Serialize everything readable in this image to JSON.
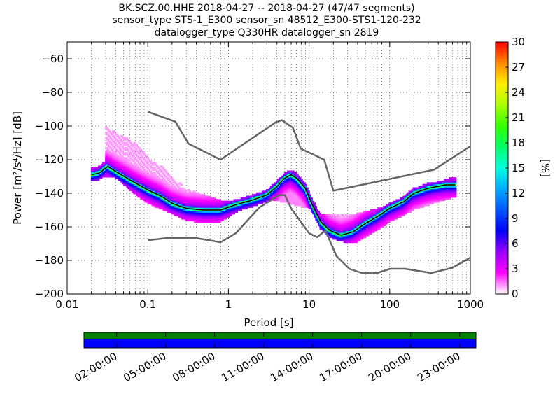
{
  "title": {
    "line1": "BK.SCZ.00.HHE   2018-04-27 -- 2018-04-27  (47/47 segments)",
    "line2": "sensor_type STS-1_E300 sensor_sn 48512_E300-STS1-120-232",
    "line3": "datalogger_type Q330HR datalogger_sn 2819"
  },
  "chart_data": {
    "type": "heatmap",
    "xlabel": "Period [s]",
    "ylabel": "Power [m²/s⁴/Hz] [dB]",
    "xscale": "log",
    "xlim": [
      0.01,
      1000
    ],
    "ylim": [
      -200,
      -50
    ],
    "x_ticks": [
      {
        "v": 0.01,
        "label": "0.01"
      },
      {
        "v": 0.1,
        "label": "0.1"
      },
      {
        "v": 1,
        "label": "1"
      },
      {
        "v": 10,
        "label": "10"
      },
      {
        "v": 100,
        "label": "100"
      },
      {
        "v": 1000,
        "label": "1000"
      }
    ],
    "y_ticks": [
      {
        "v": -60,
        "label": "−60"
      },
      {
        "v": -80,
        "label": "−80"
      },
      {
        "v": -100,
        "label": "−100"
      },
      {
        "v": -120,
        "label": "−120"
      },
      {
        "v": -140,
        "label": "−140"
      },
      {
        "v": -160,
        "label": "−160"
      },
      {
        "v": -180,
        "label": "−180"
      },
      {
        "v": -200,
        "label": "−200"
      }
    ],
    "grid": true,
    "colorbar": {
      "label": "[%]",
      "min": 0,
      "max": 30,
      "ticks": [
        {
          "v": 0,
          "label": "0"
        },
        {
          "v": 3,
          "label": "3"
        },
        {
          "v": 6,
          "label": "6"
        },
        {
          "v": 9,
          "label": "9"
        },
        {
          "v": 12,
          "label": "12"
        },
        {
          "v": 15,
          "label": "15"
        },
        {
          "v": 18,
          "label": "18"
        },
        {
          "v": 21,
          "label": "21"
        },
        {
          "v": 24,
          "label": "24"
        },
        {
          "v": 27,
          "label": "27"
        },
        {
          "v": 30,
          "label": "30"
        }
      ],
      "colormap": [
        "#ffffff",
        "#ff00ff",
        "#9900ff",
        "#0000ff",
        "#0055ff",
        "#00aaff",
        "#00ffdd",
        "#00ff66",
        "#33ff00",
        "#aaff00",
        "#ffee00",
        "#ff8800",
        "#ff0000"
      ]
    },
    "noise_model_high": [
      [
        0.1,
        -91.5
      ],
      [
        0.22,
        -97.4
      ],
      [
        0.32,
        -110.5
      ],
      [
        0.8,
        -120
      ],
      [
        3.8,
        -98
      ],
      [
        4.6,
        -96.5
      ],
      [
        6.3,
        -101
      ],
      [
        7.9,
        -113.5
      ],
      [
        15.4,
        -120
      ],
      [
        20,
        -138.5
      ],
      [
        354.8,
        -126
      ],
      [
        1000,
        -112
      ]
    ],
    "noise_model_low": [
      [
        0.1,
        -168
      ],
      [
        0.17,
        -166.7
      ],
      [
        0.4,
        -166.7
      ],
      [
        0.8,
        -169.2
      ],
      [
        1.24,
        -163.7
      ],
      [
        2.4,
        -148.6
      ],
      [
        4.3,
        -141.1
      ],
      [
        5,
        -141.1
      ],
      [
        6,
        -149
      ],
      [
        10,
        -163.8
      ],
      [
        12.6,
        -166.2
      ],
      [
        15.9,
        -162.1
      ],
      [
        21.9,
        -177.5
      ],
      [
        31.6,
        -185
      ],
      [
        45,
        -187.5
      ],
      [
        70,
        -187.5
      ],
      [
        101,
        -185
      ],
      [
        154,
        -185
      ],
      [
        328,
        -187.5
      ],
      [
        600,
        -184.4
      ],
      [
        1000,
        -178.3
      ]
    ],
    "mode_curve": [
      [
        0.02,
        -129
      ],
      [
        0.025,
        -128
      ],
      [
        0.032,
        -124
      ],
      [
        0.04,
        -127
      ],
      [
        0.06,
        -132
      ],
      [
        0.1,
        -138
      ],
      [
        0.15,
        -142
      ],
      [
        0.2,
        -146
      ],
      [
        0.3,
        -149
      ],
      [
        0.5,
        -150
      ],
      [
        0.8,
        -150
      ],
      [
        1.2,
        -147
      ],
      [
        2,
        -144
      ],
      [
        3,
        -141
      ],
      [
        4,
        -136
      ],
      [
        5,
        -131
      ],
      [
        6,
        -129
      ],
      [
        7,
        -131
      ],
      [
        9,
        -137
      ],
      [
        11,
        -147
      ],
      [
        14,
        -157
      ],
      [
        18,
        -162
      ],
      [
        25,
        -165
      ],
      [
        35,
        -163
      ],
      [
        50,
        -158
      ],
      [
        70,
        -154
      ],
      [
        100,
        -149
      ],
      [
        150,
        -145
      ],
      [
        200,
        -140
      ],
      [
        300,
        -137
      ],
      [
        500,
        -135
      ],
      [
        650,
        -135
      ]
    ],
    "spread_curve": [
      [
        0.03,
        -99
      ],
      [
        0.04,
        -104
      ],
      [
        0.06,
        -108
      ],
      [
        0.08,
        -112
      ],
      [
        0.1,
        -118
      ],
      [
        0.15,
        -124
      ],
      [
        0.2,
        -130
      ],
      [
        0.3,
        -137
      ],
      [
        0.5,
        -141
      ],
      [
        0.8,
        -144
      ],
      [
        1.2,
        -145
      ],
      [
        2,
        -143
      ],
      [
        3,
        -141
      ],
      [
        11,
        -146
      ],
      [
        14,
        -152
      ],
      [
        20,
        -153
      ],
      [
        40,
        -152
      ],
      [
        60,
        -150
      ],
      [
        100,
        -147
      ],
      [
        200,
        -140
      ],
      [
        300,
        -135
      ],
      [
        650,
        -130
      ]
    ],
    "lower_spread_curve": [
      [
        0.02,
        -130
      ],
      [
        0.04,
        -130
      ],
      [
        0.06,
        -138
      ],
      [
        0.1,
        -146
      ],
      [
        0.2,
        -152
      ],
      [
        0.3,
        -156
      ],
      [
        0.5,
        -158
      ],
      [
        0.8,
        -157
      ],
      [
        1.2,
        -152
      ],
      [
        2,
        -146
      ],
      [
        3,
        -143
      ],
      [
        12,
        -150
      ],
      [
        15,
        -160
      ],
      [
        20,
        -166
      ],
      [
        30,
        -170
      ],
      [
        40,
        -169
      ],
      [
        60,
        -164
      ],
      [
        100,
        -157
      ],
      [
        200,
        -150
      ],
      [
        350,
        -146
      ],
      [
        650,
        -142
      ]
    ]
  },
  "timeline": {
    "labels": [
      "02:00:00",
      "05:00:00",
      "08:00:00",
      "11:00:00",
      "14:00:00",
      "17:00:00",
      "20:00:00",
      "23:00:00"
    ],
    "top_color": "#007f00",
    "bottom_color": "#0000ff"
  }
}
